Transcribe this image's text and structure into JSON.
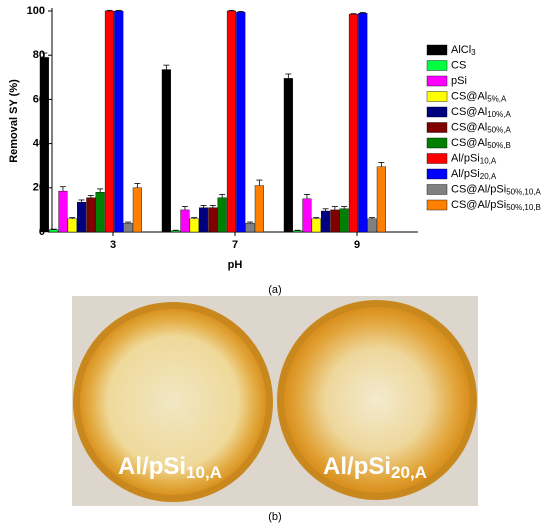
{
  "chart_data": {
    "type": "bar",
    "x_label": "pH",
    "y_label": "Removal SY (%)",
    "categories": [
      "3",
      "7",
      "9"
    ],
    "ylim": [
      0,
      100
    ],
    "yticks": [
      0,
      20,
      40,
      60,
      80,
      100
    ],
    "series": [
      {
        "name": "AlCl",
        "sub": "3",
        "color": "#000000",
        "values": [
          79,
          73.5,
          69.5
        ],
        "errors": [
          2,
          2,
          2
        ]
      },
      {
        "name": "CS",
        "color": "#00ff40",
        "values": [
          1,
          0.5,
          0.5
        ],
        "errors": [
          0.3,
          0.3,
          0.3
        ]
      },
      {
        "name": "pSi",
        "color": "#ff00ff",
        "values": [
          18.5,
          10,
          15
        ],
        "errors": [
          2,
          1.5,
          2
        ]
      },
      {
        "name": "CS@Al",
        "sub": "5%,A",
        "color": "#ffff00",
        "values": [
          6,
          6,
          6
        ],
        "errors": [
          0.5,
          0.5,
          0.5
        ]
      },
      {
        "name": "CS@Al",
        "sub": "10%,A",
        "color": "#000080",
        "values": [
          13.5,
          11,
          9.5
        ],
        "errors": [
          1,
          1,
          1
        ]
      },
      {
        "name": "CS@Al",
        "sub": "50%,A",
        "color": "#800000",
        "values": [
          15.5,
          11,
          10
        ],
        "errors": [
          1,
          1,
          1.5
        ]
      },
      {
        "name": "CS@Al",
        "sub": "50%,B",
        "color": "#008000",
        "values": [
          18,
          15.5,
          10.5
        ],
        "errors": [
          1.5,
          1.5,
          1
        ]
      },
      {
        "name": "Al/pSi",
        "sub": "10,A",
        "color": "#ff0000",
        "values": [
          100,
          100,
          98.5
        ],
        "errors": [
          0.3,
          0.3,
          0.3
        ]
      },
      {
        "name": "Al/pSi",
        "sub": "20,A",
        "color": "#0000ff",
        "values": [
          100,
          99.5,
          99
        ],
        "errors": [
          0.3,
          0.3,
          0.3
        ]
      },
      {
        "name": "CS@Al/pSi",
        "sub": "50%,10,A",
        "color": "#808080",
        "values": [
          4,
          4,
          6
        ],
        "errors": [
          0.5,
          0.5,
          0.5
        ]
      },
      {
        "name": "CS@Al/pSi",
        "sub": "50%,10,B",
        "color": "#ff8000",
        "values": [
          20,
          21,
          29.5
        ],
        "errors": [
          2,
          2.5,
          2
        ]
      }
    ],
    "caption": "(a)"
  },
  "photo": {
    "labels": [
      {
        "text": "Al/pSi",
        "sub": "10,A"
      },
      {
        "text": "Al/pSi",
        "sub": "20,A"
      }
    ],
    "caption": "(b)"
  }
}
